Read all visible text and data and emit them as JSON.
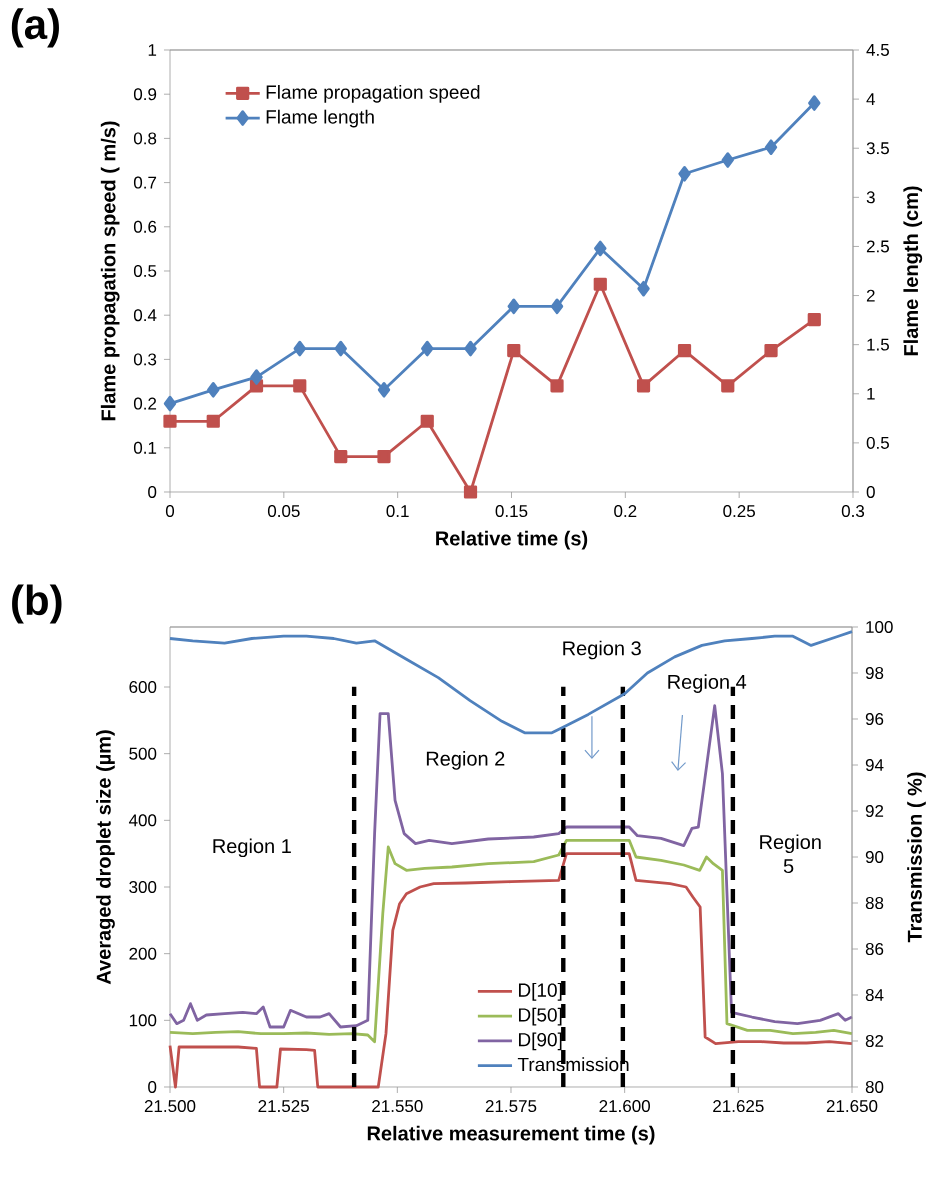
{
  "chart_data": [
    {
      "type": "line",
      "annotations": [
        "(a)"
      ],
      "xlabel": "Relative time (s)",
      "ylabel": "Flame propagation speed ( m/s)",
      "y2label": "Flame length (cm)",
      "x": [
        0,
        0.019,
        0.038,
        0.057,
        0.075,
        0.094,
        0.113,
        0.132,
        0.151,
        0.17,
        0.189,
        0.208,
        0.226,
        0.245,
        0.264,
        0.283
      ],
      "series": [
        {
          "name": "Flame propagation speed",
          "color": "#c0504d",
          "marker": "square",
          "values": [
            0.16,
            0.16,
            0.24,
            0.24,
            0.08,
            0.08,
            0.16,
            0,
            0.32,
            0.24,
            0.47,
            0.24,
            0.32,
            0.24,
            0.32,
            0.39
          ]
        },
        {
          "name": "Flame length",
          "color": "#4f81bd",
          "marker": "diamond",
          "axis": "y2",
          "values": [
            0.9,
            1.04,
            1.17,
            1.46,
            1.46,
            1.04,
            1.46,
            1.46,
            1.89,
            1.89,
            2.48,
            2.07,
            3.24,
            3.38,
            3.51,
            3.96
          ]
        }
      ],
      "xlim": [
        0,
        0.3
      ],
      "xticks": [
        0,
        0.05,
        0.1,
        0.15,
        0.2,
        0.25,
        0.3
      ],
      "ylim": [
        0,
        1
      ],
      "yticks": [
        0,
        0.1,
        0.2,
        0.3,
        0.4,
        0.5,
        0.6,
        0.7,
        0.8,
        0.9,
        1
      ],
      "y2lim": [
        0,
        4.5
      ],
      "y2ticks": [
        0,
        0.5,
        1,
        1.5,
        2,
        2.5,
        3,
        3.5,
        4,
        4.5
      ],
      "legend": "top left"
    },
    {
      "type": "line",
      "annotations": [
        "(b)",
        "Region 1",
        "Region 2",
        "Region 3",
        "Region 4",
        "Region 5"
      ],
      "xlabel": "Relative measurement time (s)",
      "ylabel": "Averaged droplet size (µm)",
      "y2label": "Transmission ( %)",
      "series": [
        {
          "name": "D[10]",
          "color": "#c0504d",
          "x": [
            21.5,
            21.5012,
            21.502,
            21.5028,
            21.51,
            21.515,
            21.519,
            21.5197,
            21.5235,
            21.5243,
            21.53,
            21.5318,
            21.5325,
            21.54,
            21.5458,
            21.5475,
            21.549,
            21.5505,
            21.552,
            21.555,
            21.558,
            21.565,
            21.575,
            21.5855,
            21.5872,
            21.601,
            21.6025,
            21.61,
            21.6135,
            21.615,
            21.6166,
            21.6177,
            21.62,
            21.625,
            21.63,
            21.635,
            21.64,
            21.645,
            21.65
          ],
          "values": [
            62,
            0,
            60,
            60,
            60,
            60,
            58,
            0,
            0,
            57,
            56,
            55,
            0,
            0,
            0,
            80,
            235,
            275,
            290,
            300,
            305,
            306,
            308,
            310,
            350,
            350,
            310,
            305,
            300,
            285,
            270,
            75,
            65,
            68,
            68,
            66,
            66,
            68,
            65
          ]
        },
        {
          "name": "D[50]",
          "color": "#9bbb59",
          "x": [
            21.5,
            21.505,
            21.51,
            21.515,
            21.52,
            21.525,
            21.53,
            21.535,
            21.54,
            21.5435,
            21.545,
            21.5468,
            21.548,
            21.5495,
            21.552,
            21.556,
            21.562,
            21.57,
            21.58,
            21.5855,
            21.5872,
            21.601,
            21.6025,
            21.608,
            21.613,
            21.6165,
            21.618,
            21.6195,
            21.6215,
            21.6225,
            21.627,
            21.632,
            21.637,
            21.642,
            21.646,
            21.65
          ],
          "values": [
            82,
            80,
            82,
            83,
            80,
            80,
            81,
            79,
            80,
            78,
            68,
            260,
            360,
            335,
            325,
            328,
            330,
            335,
            338,
            348,
            370,
            370,
            345,
            340,
            333,
            325,
            345,
            335,
            325,
            95,
            85,
            85,
            80,
            82,
            85,
            80
          ]
        },
        {
          "name": "D[90]",
          "color": "#8064a2",
          "x": [
            21.5,
            21.5015,
            21.503,
            21.5045,
            21.506,
            21.508,
            21.512,
            21.516,
            21.519,
            21.5205,
            21.522,
            21.5235,
            21.525,
            21.5265,
            21.53,
            21.533,
            21.535,
            21.5375,
            21.541,
            21.5435,
            21.545,
            21.5462,
            21.548,
            21.5495,
            21.5515,
            21.554,
            21.557,
            21.562,
            21.57,
            21.58,
            21.5855,
            21.5872,
            21.601,
            21.6028,
            21.608,
            21.613,
            21.6148,
            21.6162,
            21.6175,
            21.6198,
            21.6215,
            21.6235,
            21.628,
            21.633,
            21.638,
            21.643,
            21.647,
            21.6485,
            21.65
          ],
          "values": [
            110,
            95,
            100,
            125,
            100,
            108,
            110,
            112,
            110,
            120,
            90,
            90,
            90,
            115,
            105,
            105,
            110,
            90,
            92,
            100,
            380,
            560,
            560,
            430,
            380,
            365,
            370,
            365,
            372,
            375,
            380,
            390,
            390,
            377,
            373,
            362,
            388,
            390,
            455,
            572,
            470,
            112,
            105,
            98,
            95,
            100,
            110,
            100,
            105
          ]
        },
        {
          "name": "Transmission",
          "color": "#4f81bd",
          "axis": "y2",
          "x": [
            21.5,
            21.505,
            21.512,
            21.518,
            21.525,
            21.53,
            21.536,
            21.541,
            21.545,
            21.552,
            21.559,
            21.566,
            21.573,
            21.578,
            21.584,
            21.587,
            21.592,
            21.6,
            21.605,
            21.611,
            21.617,
            21.622,
            21.628,
            21.633,
            21.637,
            21.641,
            21.647,
            21.65
          ],
          "values": [
            99.5,
            99.4,
            99.3,
            99.5,
            99.6,
            99.6,
            99.5,
            99.3,
            99.4,
            98.6,
            97.8,
            96.8,
            95.9,
            95.4,
            95.4,
            95.7,
            96.2,
            97.1,
            98.0,
            98.7,
            99.2,
            99.4,
            99.5,
            99.6,
            99.6,
            99.2,
            99.6,
            99.8
          ]
        }
      ],
      "xlim": [
        21.5,
        21.65
      ],
      "xticks": [
        {
          "value": 21.5,
          "label": "21.500"
        },
        {
          "value": 21.525,
          "label": "21.525"
        },
        {
          "value": 21.55,
          "label": "21.550"
        },
        {
          "value": 21.575,
          "label": "21.575"
        },
        {
          "value": 21.6,
          "label": "21.600"
        },
        {
          "value": 21.625,
          "label": "21.625"
        },
        {
          "value": 21.65,
          "label": "21.650"
        }
      ],
      "ylim": [
        0,
        690
      ],
      "yticks": [
        0,
        100,
        200,
        300,
        400,
        500,
        600
      ],
      "y2lim": [
        80,
        100
      ],
      "y2ticks": [
        80,
        82,
        84,
        86,
        88,
        90,
        92,
        94,
        96,
        98,
        100
      ],
      "ref_lines": [
        {
          "axis": "x",
          "value": 21.5405,
          "color": "#000000",
          "line_style": "dashed"
        },
        {
          "axis": "x",
          "value": 21.5865,
          "color": "#000000",
          "line_style": "dashed"
        },
        {
          "axis": "x",
          "value": 21.5996,
          "color": "#000000",
          "line_style": "dashed"
        },
        {
          "axis": "x",
          "value": 21.6238,
          "color": "#000000",
          "line_style": "dashed"
        }
      ],
      "legend": "bottom"
    }
  ]
}
